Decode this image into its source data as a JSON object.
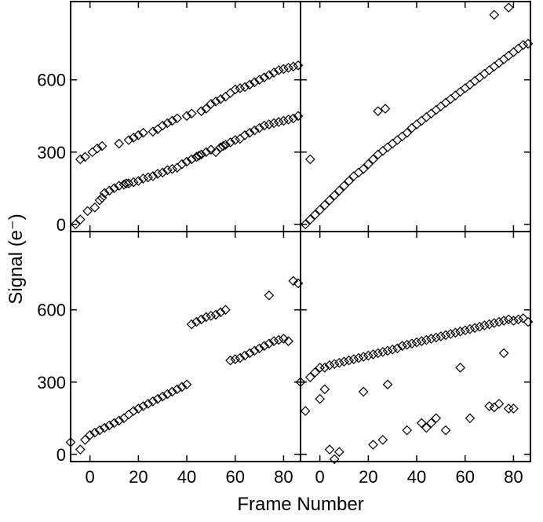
{
  "chart_data": {
    "type": "scatter",
    "layout": "2x2 grid, shared axes",
    "marker": "open-diamond",
    "xlabel": "Frame Number",
    "ylabel": "Signal (e⁻)",
    "xlim": [
      -8,
      87
    ],
    "ylim": [
      -30,
      925
    ],
    "xticks": [
      0,
      20,
      40,
      60,
      80
    ],
    "yticks": [
      0,
      300,
      600
    ],
    "grid": false,
    "panels": [
      {
        "position": "top-left",
        "series": [
          {
            "x": [
              -6,
              -4,
              -1,
              2,
              4,
              5,
              6,
              8,
              10,
              12,
              14,
              15,
              16,
              18,
              20,
              22,
              24,
              26,
              28,
              30,
              32,
              34,
              36,
              38,
              40,
              42,
              44,
              45,
              46,
              48,
              50,
              52,
              54,
              55,
              56,
              58,
              60,
              62,
              64,
              66,
              68,
              70,
              72,
              74,
              76,
              78,
              80,
              82,
              84,
              86
            ],
            "y": [
              0,
              20,
              55,
              70,
              100,
              110,
              130,
              140,
              150,
              160,
              165,
              170,
              170,
              175,
              180,
              190,
              195,
              200,
              210,
              215,
              225,
              230,
              235,
              250,
              260,
              270,
              280,
              285,
              290,
              300,
              310,
              300,
              320,
              325,
              330,
              340,
              350,
              355,
              370,
              380,
              390,
              400,
              410,
              415,
              420,
              425,
              430,
              435,
              440,
              450
            ]
          },
          {
            "x": [
              -4,
              -2,
              1,
              3,
              5,
              12,
              16,
              18,
              20,
              22,
              26,
              28,
              30,
              32,
              34,
              36,
              40,
              42,
              46,
              48,
              50,
              52,
              54,
              56,
              58,
              60,
              62,
              64,
              66,
              68,
              70,
              72,
              74,
              76,
              78,
              80,
              82,
              84,
              86
            ],
            "y": [
              270,
              280,
              300,
              315,
              325,
              335,
              350,
              360,
              370,
              380,
              385,
              395,
              410,
              420,
              430,
              440,
              450,
              460,
              470,
              480,
              500,
              510,
              520,
              530,
              545,
              560,
              565,
              570,
              580,
              590,
              600,
              610,
              620,
              630,
              640,
              645,
              650,
              655,
              660
            ]
          }
        ]
      },
      {
        "position": "top-right",
        "series": [
          {
            "x": [
              -6,
              -4,
              -2,
              0,
              2,
              4,
              6,
              8,
              10,
              12,
              14,
              16,
              18,
              20,
              22,
              24,
              26,
              28,
              30,
              32,
              34,
              36,
              38,
              40,
              42,
              44,
              46,
              48,
              50,
              52,
              54,
              56,
              58,
              60,
              62,
              64,
              66,
              68,
              70,
              72,
              74,
              76,
              78,
              80,
              82,
              84,
              86
            ],
            "y": [
              0,
              20,
              40,
              60,
              80,
              100,
              120,
              140,
              160,
              180,
              200,
              215,
              230,
              250,
              270,
              290,
              305,
              320,
              335,
              350,
              365,
              380,
              400,
              415,
              430,
              445,
              460,
              475,
              490,
              505,
              520,
              535,
              550,
              565,
              580,
              595,
              610,
              625,
              640,
              655,
              670,
              685,
              700,
              715,
              730,
              745,
              750
            ]
          },
          {
            "x": [
              -4,
              24,
              27,
              72,
              78
            ],
            "y": [
              270,
              470,
              480,
              870,
              900
            ]
          }
        ]
      },
      {
        "position": "bottom-left",
        "series": [
          {
            "x": [
              -8,
              -4,
              -2,
              0,
              2,
              4,
              6,
              8,
              10,
              12,
              14,
              16,
              18,
              20,
              22,
              24,
              26,
              28,
              30,
              32,
              34,
              36,
              38,
              40,
              42,
              44,
              46,
              48,
              50,
              52,
              54,
              56,
              58,
              60,
              62,
              64,
              66,
              68,
              70,
              72,
              74,
              76,
              78,
              80,
              82,
              84,
              86
            ],
            "y": [
              50,
              20,
              60,
              80,
              90,
              100,
              110,
              120,
              130,
              140,
              150,
              165,
              180,
              190,
              200,
              210,
              220,
              230,
              240,
              250,
              260,
              270,
              280,
              290,
              540,
              550,
              560,
              570,
              575,
              580,
              590,
              600,
              390,
              395,
              400,
              410,
              420,
              430,
              440,
              450,
              460,
              470,
              475,
              480,
              470,
              720,
              710
            ]
          },
          {
            "x": [
              74
            ],
            "y": [
              660
            ]
          }
        ]
      },
      {
        "position": "bottom-right",
        "series": [
          {
            "x": [
              -8,
              -4,
              -2,
              0,
              2,
              4,
              6,
              8,
              10,
              12,
              14,
              16,
              18,
              20,
              22,
              24,
              26,
              28,
              30,
              32,
              34,
              36,
              38,
              40,
              42,
              44,
              46,
              48,
              50,
              52,
              54,
              56,
              58,
              60,
              62,
              64,
              66,
              68,
              70,
              72,
              74,
              76,
              78,
              80,
              82,
              84,
              86
            ],
            "y": [
              300,
              320,
              340,
              360,
              360,
              370,
              375,
              380,
              385,
              390,
              395,
              400,
              405,
              410,
              415,
              420,
              425,
              430,
              435,
              440,
              450,
              455,
              460,
              465,
              470,
              475,
              480,
              485,
              490,
              495,
              500,
              505,
              510,
              515,
              520,
              525,
              530,
              535,
              540,
              545,
              550,
              555,
              560,
              555,
              560,
              565,
              550
            ]
          },
          {
            "x": [
              -6,
              0,
              2,
              4,
              6,
              8,
              18,
              22,
              26,
              28,
              36,
              42,
              44,
              46,
              48,
              52,
              58,
              62,
              70,
              72,
              74,
              76,
              78,
              80
            ],
            "y": [
              180,
              230,
              270,
              20,
              -20,
              10,
              260,
              40,
              60,
              290,
              100,
              130,
              110,
              130,
              150,
              100,
              360,
              150,
              200,
              195,
              210,
              420,
              190,
              190
            ]
          }
        ]
      }
    ]
  }
}
